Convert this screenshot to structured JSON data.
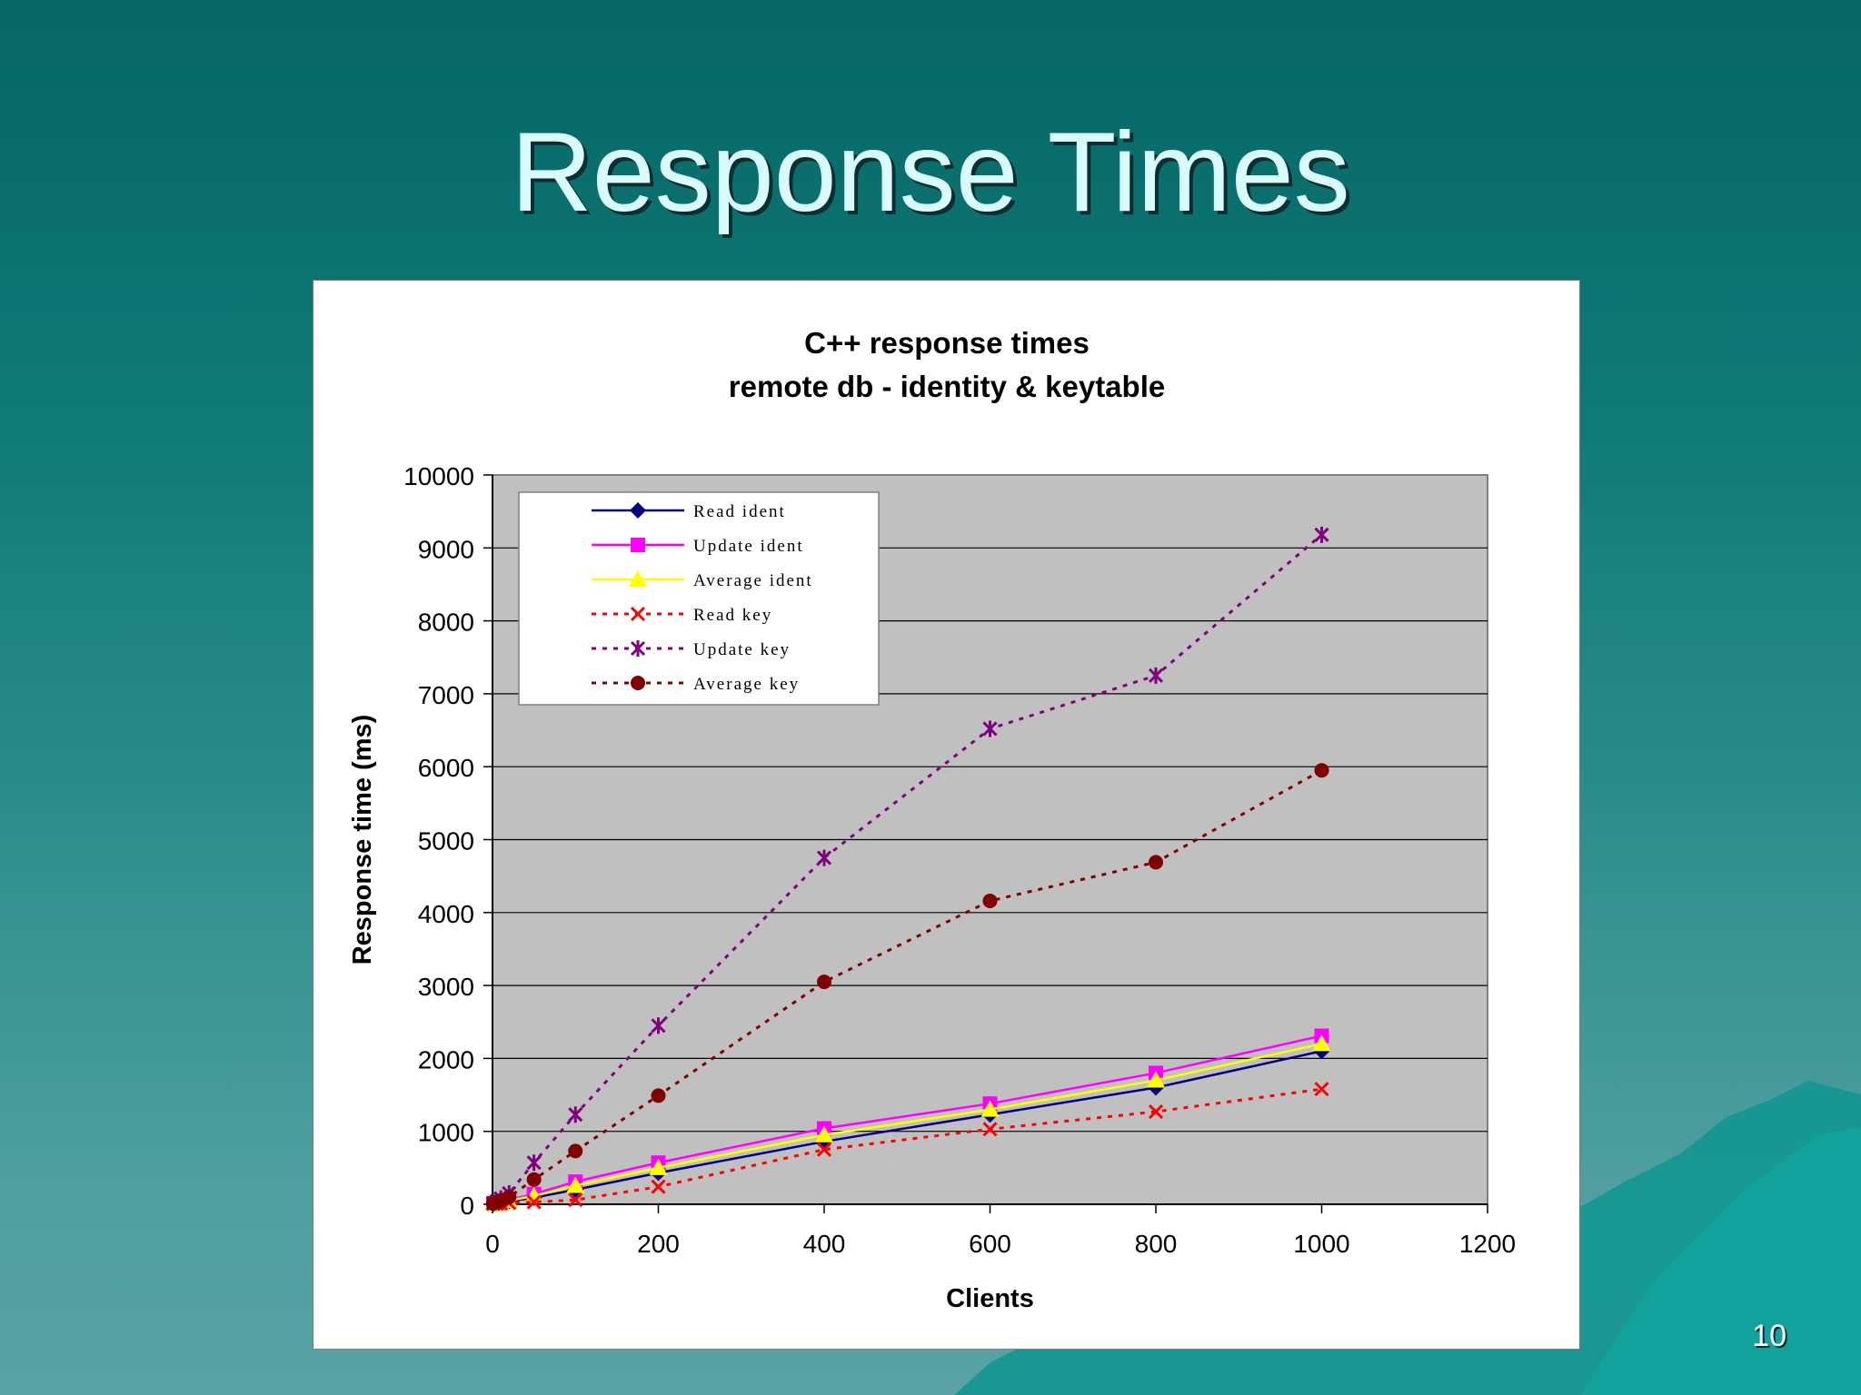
{
  "slide": {
    "title": "Response Times",
    "page_number": "10"
  },
  "colors": {
    "background_top": "#066665",
    "background_bottom": "#5aa3a4",
    "title": "#d9fbfb",
    "plot_area": "#c0c0c0"
  },
  "chart_data": {
    "type": "line",
    "title": "C++ response times",
    "subtitle": "remote db - identity & keytable",
    "xlabel": "Clients",
    "ylabel": "Response time (ms)",
    "xlim": [
      0,
      1200
    ],
    "ylim": [
      0,
      10000
    ],
    "xticks": [
      "0",
      "200",
      "400",
      "600",
      "800",
      "1000",
      "1200"
    ],
    "yticks": [
      "0",
      "1000",
      "2000",
      "3000",
      "4000",
      "5000",
      "6000",
      "7000",
      "8000",
      "9000",
      "10000"
    ],
    "grid": true,
    "legend_position": "top-left",
    "series": [
      {
        "name": "Read ident",
        "color": "#000080",
        "dashed": false,
        "marker": "diamond",
        "x": [
          1,
          5,
          10,
          20,
          50,
          100,
          200,
          400,
          600,
          800,
          1000
        ],
        "y": [
          5,
          10,
          15,
          40,
          90,
          200,
          430,
          860,
          1230,
          1600,
          2100
        ]
      },
      {
        "name": "Update ident",
        "color": "#ff00ff",
        "dashed": false,
        "marker": "square",
        "x": [
          1,
          5,
          10,
          20,
          50,
          100,
          200,
          400,
          600,
          800,
          1000
        ],
        "y": [
          10,
          20,
          25,
          60,
          140,
          310,
          570,
          1040,
          1380,
          1800,
          2310
        ]
      },
      {
        "name": "Average ident",
        "color": "#ffff00",
        "dashed": false,
        "marker": "triangle",
        "x": [
          1,
          5,
          10,
          20,
          50,
          100,
          200,
          400,
          600,
          800,
          1000
        ],
        "y": [
          8,
          15,
          20,
          50,
          115,
          255,
          500,
          950,
          1300,
          1700,
          2200
        ]
      },
      {
        "name": "Read key",
        "color": "#ff0000",
        "dashed": true,
        "marker": "x",
        "x": [
          1,
          5,
          10,
          20,
          50,
          100,
          200,
          400,
          600,
          800,
          1000
        ],
        "y": [
          5,
          8,
          10,
          20,
          30,
          60,
          240,
          750,
          1030,
          1270,
          1580
        ]
      },
      {
        "name": "Update key",
        "color": "#800080",
        "dashed": true,
        "marker": "star",
        "x": [
          1,
          5,
          10,
          20,
          50,
          100,
          200,
          400,
          600,
          800,
          1000
        ],
        "y": [
          20,
          40,
          80,
          150,
          570,
          1230,
          2450,
          4750,
          6520,
          7250,
          9180
        ]
      },
      {
        "name": "Average key",
        "color": "#800000",
        "dashed": true,
        "marker": "circle",
        "x": [
          1,
          5,
          10,
          20,
          50,
          100,
          200,
          400,
          600,
          800,
          1000
        ],
        "y": [
          12,
          25,
          50,
          100,
          340,
          730,
          1490,
          3050,
          4160,
          4690,
          5950
        ]
      }
    ]
  }
}
